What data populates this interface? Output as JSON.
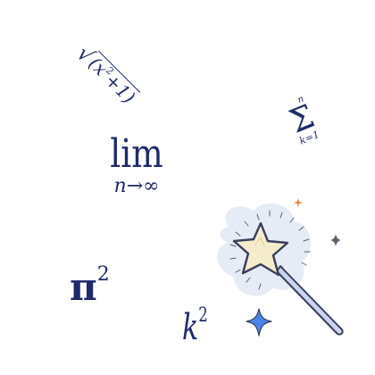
{
  "expressions": {
    "sqrt": {
      "sign": "√",
      "base": "(x",
      "exponent": "2",
      "tail": "+1)"
    },
    "sum": {
      "upper": "n",
      "symbol": "Σ",
      "lower": "k=1"
    },
    "limit": {
      "word": "lim",
      "subscript": "n→∞"
    },
    "pi_squared": {
      "base": "π",
      "exponent": "2"
    },
    "k_squared": {
      "base": "k",
      "exponent": "2"
    }
  },
  "wand_illustration": {
    "icon": "magic-wand-icon",
    "colors": {
      "glow": "#e6ecf5",
      "star_fill": "#f5eccc",
      "outline": "#3a3f5c",
      "handle": "#c9d4ee",
      "sparkle_blue": "#4a86e8",
      "sparkle_gray": "#5a6070",
      "sparkle_orange": "#f08a4b"
    }
  }
}
